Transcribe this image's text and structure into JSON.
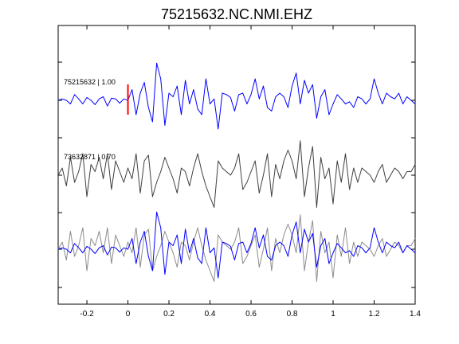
{
  "chart_data": {
    "type": "line",
    "title": "75215632.NC.NMI.EHZ",
    "xlabel": "",
    "ylabel": "",
    "xlim": [
      -0.34,
      1.4
    ],
    "xticks": [
      -0.2,
      0,
      0.2,
      0.4,
      0.6,
      0.8,
      1,
      1.2,
      1.4
    ],
    "xtick_labels": [
      "-0.2",
      "0",
      "0.2",
      "0.4",
      "0.6",
      "0.8",
      "1",
      "1.2",
      "1.4"
    ],
    "grid": false,
    "pick_marker": {
      "x": 0,
      "color": "#ff0000"
    },
    "traces": [
      {
        "label": "75215632 | 1.00",
        "row": 1,
        "color": "#0000ff",
        "x": [
          -0.34,
          -0.32,
          -0.3,
          -0.28,
          -0.26,
          -0.24,
          -0.22,
          -0.2,
          -0.18,
          -0.16,
          -0.14,
          -0.12,
          -0.1,
          -0.08,
          -0.06,
          -0.04,
          -0.02,
          0,
          0.02,
          0.04,
          0.06,
          0.08,
          0.1,
          0.12,
          0.14,
          0.16,
          0.18,
          0.2,
          0.22,
          0.24,
          0.26,
          0.28,
          0.3,
          0.32,
          0.34,
          0.36,
          0.38,
          0.4,
          0.42,
          0.44,
          0.46,
          0.48,
          0.5,
          0.52,
          0.54,
          0.56,
          0.58,
          0.6,
          0.62,
          0.64,
          0.66,
          0.68,
          0.7,
          0.72,
          0.74,
          0.76,
          0.78,
          0.8,
          0.82,
          0.84,
          0.86,
          0.88,
          0.9,
          0.92,
          0.94,
          0.96,
          0.98,
          1,
          1.02,
          1.04,
          1.06,
          1.08,
          1.1,
          1.12,
          1.14,
          1.16,
          1.18,
          1.2,
          1.22,
          1.24,
          1.26,
          1.28,
          1.3,
          1.32,
          1.34,
          1.36,
          1.38,
          1.4
        ],
        "y": [
          0,
          0.02,
          0,
          -0.05,
          0.08,
          0.02,
          -0.05,
          0.04,
          0,
          -0.06,
          0.02,
          0.05,
          -0.08,
          0.03,
          0.02,
          -0.04,
          0.02,
          0,
          0.15,
          -0.2,
          0.1,
          0.25,
          -0.1,
          -0.3,
          0.52,
          0.3,
          -0.35,
          0.1,
          0.05,
          0.2,
          -0.2,
          0.28,
          -0.05,
          0.15,
          -0.12,
          -0.2,
          0.3,
          -0.05,
          0.02,
          -0.4,
          0.1,
          0.08,
          0.04,
          -0.15,
          0.08,
          0.1,
          -0.05,
          0.08,
          0.3,
          0.02,
          0.2,
          -0.1,
          -0.15,
          0.05,
          0.1,
          0.05,
          -0.1,
          0.2,
          0.38,
          -0.05,
          0.28,
          0.1,
          0.22,
          -0.25,
          0.05,
          0.15,
          -0.2,
          -0.05,
          0.08,
          0.02,
          -0.05,
          -0.02,
          -0.1,
          0.05,
          0.02,
          -0.05,
          0.02,
          0.3,
          0.1,
          -0.05,
          0.1,
          0.05,
          0.02,
          0.1,
          -0.05,
          0.05,
          0,
          -0.05
        ]
      },
      {
        "label": "73632871 | 0.70",
        "row": 2,
        "color": "#3f3f3f",
        "x": [
          -0.34,
          -0.32,
          -0.3,
          -0.28,
          -0.26,
          -0.24,
          -0.22,
          -0.2,
          -0.18,
          -0.16,
          -0.14,
          -0.12,
          -0.1,
          -0.08,
          -0.06,
          -0.04,
          -0.02,
          0,
          0.02,
          0.04,
          0.06,
          0.08,
          0.1,
          0.12,
          0.14,
          0.16,
          0.18,
          0.2,
          0.22,
          0.24,
          0.26,
          0.28,
          0.3,
          0.32,
          0.34,
          0.36,
          0.38,
          0.4,
          0.42,
          0.44,
          0.46,
          0.48,
          0.5,
          0.52,
          0.54,
          0.56,
          0.58,
          0.6,
          0.62,
          0.64,
          0.66,
          0.68,
          0.7,
          0.72,
          0.74,
          0.76,
          0.78,
          0.8,
          0.82,
          0.84,
          0.86,
          0.88,
          0.9,
          0.92,
          0.94,
          0.96,
          0.98,
          1,
          1.02,
          1.04,
          1.06,
          1.08,
          1.1,
          1.12,
          1.14,
          1.16,
          1.18,
          1.2,
          1.22,
          1.24,
          1.26,
          1.28,
          1.3,
          1.32,
          1.34,
          1.36,
          1.38,
          1.4
        ],
        "y": [
          0,
          0.1,
          -0.15,
          0.25,
          -0.1,
          0.05,
          0.3,
          -0.3,
          0.15,
          0.05,
          0.25,
          -0.05,
          0.3,
          -0.2,
          0.2,
          0.05,
          -0.1,
          0.1,
          -0.05,
          0.3,
          -0.25,
          0.2,
          0.28,
          -0.3,
          -0.1,
          0.05,
          0.25,
          0.1,
          -0.05,
          -0.25,
          0.1,
          0.05,
          -0.15,
          0.1,
          0.3,
          0.05,
          -0.15,
          -0.3,
          -0.45,
          0.2,
          0.1,
          0.05,
          0,
          0.1,
          0.3,
          -0.2,
          -0.1,
          0.05,
          0.2,
          -0.25,
          0,
          0.3,
          -0.3,
          0.15,
          -0.05,
          0.2,
          0.35,
          0.2,
          -0.05,
          0.48,
          -0.3,
          0.1,
          0.4,
          -0.45,
          0.25,
          -0.05,
          0.1,
          -0.4,
          0.2,
          -0.1,
          0.3,
          -0.2,
          0.1,
          -0.1,
          0.1,
          0.05,
          0,
          -0.1,
          0.05,
          0.15,
          -0.1,
          0,
          0.1,
          0.05,
          -0.05,
          0.05,
          0.05,
          0.15
        ]
      },
      {
        "label": "",
        "row": 3,
        "color": "#8c8c8c",
        "overlay_of": "73632871 | 0.70",
        "x": [
          -0.34,
          -0.32,
          -0.3,
          -0.28,
          -0.26,
          -0.24,
          -0.22,
          -0.2,
          -0.18,
          -0.16,
          -0.14,
          -0.12,
          -0.1,
          -0.08,
          -0.06,
          -0.04,
          -0.02,
          0,
          0.02,
          0.04,
          0.06,
          0.08,
          0.1,
          0.12,
          0.14,
          0.16,
          0.18,
          0.2,
          0.22,
          0.24,
          0.26,
          0.28,
          0.3,
          0.32,
          0.34,
          0.36,
          0.38,
          0.4,
          0.42,
          0.44,
          0.46,
          0.48,
          0.5,
          0.52,
          0.54,
          0.56,
          0.58,
          0.6,
          0.62,
          0.64,
          0.66,
          0.68,
          0.7,
          0.72,
          0.74,
          0.76,
          0.78,
          0.8,
          0.82,
          0.84,
          0.86,
          0.88,
          0.9,
          0.92,
          0.94,
          0.96,
          0.98,
          1,
          1.02,
          1.04,
          1.06,
          1.08,
          1.1,
          1.12,
          1.14,
          1.16,
          1.18,
          1.2,
          1.22,
          1.24,
          1.26,
          1.28,
          1.3,
          1.32,
          1.34,
          1.36,
          1.38,
          1.4
        ],
        "y": [
          0,
          0.1,
          -0.15,
          0.25,
          -0.1,
          0.05,
          0.3,
          -0.3,
          0.15,
          0.05,
          0.25,
          -0.05,
          0.3,
          -0.2,
          0.2,
          0.05,
          -0.1,
          0.1,
          -0.05,
          0.3,
          -0.25,
          0.2,
          0.28,
          -0.3,
          -0.1,
          0.05,
          0.25,
          0.1,
          -0.05,
          -0.25,
          0.1,
          0.05,
          -0.15,
          0.1,
          0.3,
          0.05,
          -0.15,
          -0.3,
          -0.45,
          0.2,
          0.1,
          0.05,
          0,
          0.1,
          0.3,
          -0.2,
          -0.1,
          0.05,
          0.2,
          -0.25,
          0,
          0.3,
          -0.3,
          0.15,
          -0.05,
          0.2,
          0.35,
          0.2,
          -0.05,
          0.48,
          -0.3,
          0.1,
          0.4,
          -0.45,
          0.25,
          -0.05,
          0.1,
          -0.4,
          0.2,
          -0.1,
          0.3,
          -0.2,
          0.1,
          -0.1,
          0.1,
          0.05,
          0,
          -0.1,
          0.05,
          0.15,
          -0.1,
          0,
          0.1,
          0.05,
          -0.05,
          0.05,
          0.05,
          0.15
        ]
      },
      {
        "label": "",
        "row": 3,
        "color": "#0000ff",
        "overlay_of": "75215632 | 1.00",
        "x": [
          -0.34,
          -0.32,
          -0.3,
          -0.28,
          -0.26,
          -0.24,
          -0.22,
          -0.2,
          -0.18,
          -0.16,
          -0.14,
          -0.12,
          -0.1,
          -0.08,
          -0.06,
          -0.04,
          -0.02,
          0,
          0.02,
          0.04,
          0.06,
          0.08,
          0.1,
          0.12,
          0.14,
          0.16,
          0.18,
          0.2,
          0.22,
          0.24,
          0.26,
          0.28,
          0.3,
          0.32,
          0.34,
          0.36,
          0.38,
          0.4,
          0.42,
          0.44,
          0.46,
          0.48,
          0.5,
          0.52,
          0.54,
          0.56,
          0.58,
          0.6,
          0.62,
          0.64,
          0.66,
          0.68,
          0.7,
          0.72,
          0.74,
          0.76,
          0.78,
          0.8,
          0.82,
          0.84,
          0.86,
          0.88,
          0.9,
          0.92,
          0.94,
          0.96,
          0.98,
          1,
          1.02,
          1.04,
          1.06,
          1.08,
          1.1,
          1.12,
          1.14,
          1.16,
          1.18,
          1.2,
          1.22,
          1.24,
          1.26,
          1.28,
          1.3,
          1.32,
          1.34,
          1.36,
          1.38,
          1.4
        ],
        "y": [
          0,
          0.02,
          0,
          -0.05,
          0.08,
          0.02,
          -0.05,
          0.04,
          0,
          -0.06,
          0.02,
          0.05,
          -0.08,
          0.03,
          0.02,
          -0.04,
          0.02,
          0,
          0.15,
          -0.2,
          0.1,
          0.25,
          -0.1,
          -0.3,
          0.52,
          0.3,
          -0.35,
          0.1,
          0.05,
          0.2,
          -0.2,
          0.28,
          -0.05,
          0.15,
          -0.12,
          -0.2,
          0.3,
          -0.05,
          0.02,
          -0.4,
          0.1,
          0.08,
          0.04,
          -0.15,
          0.08,
          0.1,
          -0.05,
          0.08,
          0.3,
          0.02,
          0.2,
          -0.1,
          -0.15,
          0.05,
          0.1,
          0.05,
          -0.1,
          0.2,
          0.38,
          -0.05,
          0.28,
          0.1,
          0.22,
          -0.25,
          0.05,
          0.15,
          -0.2,
          -0.05,
          0.08,
          0.02,
          -0.05,
          -0.02,
          -0.1,
          0.05,
          0.02,
          -0.05,
          0.02,
          0.3,
          0.1,
          -0.05,
          0.1,
          0.05,
          0.02,
          0.1,
          -0.05,
          0.05,
          0,
          -0.05
        ]
      }
    ]
  }
}
